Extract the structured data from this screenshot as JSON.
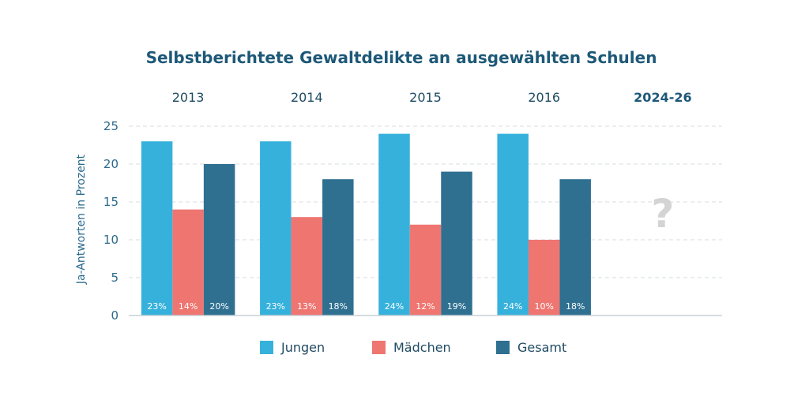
{
  "chart_data": {
    "type": "bar",
    "title": "Selbstberichtete Gewaltdelikte an ausgewählten Schulen",
    "ylabel": "Ja-Antworten in Prozent",
    "xlabel": "",
    "ylim": [
      0,
      25
    ],
    "yticks": [
      0,
      5,
      10,
      15,
      20,
      25
    ],
    "grid": true,
    "legend_position": "bottom",
    "categories": [
      "2013",
      "2014",
      "2015",
      "2016",
      "2024-26"
    ],
    "series": [
      {
        "name": "Jungen",
        "color": "#36b1dc",
        "values": [
          23,
          23,
          24,
          24,
          null
        ],
        "labels": [
          "23%",
          "23%",
          "24%",
          "24%",
          ""
        ]
      },
      {
        "name": "Mädchen",
        "color": "#ef7570",
        "values": [
          14,
          13,
          12,
          10,
          null
        ],
        "labels": [
          "14%",
          "13%",
          "12%",
          "10%",
          ""
        ]
      },
      {
        "name": "Gesamt",
        "color": "#2f7091",
        "values": [
          20,
          18,
          19,
          18,
          null
        ],
        "labels": [
          "20%",
          "18%",
          "19%",
          "18%",
          ""
        ]
      }
    ],
    "placeholder": {
      "category": "2024-26",
      "symbol": "?"
    }
  },
  "colors": {
    "title": "#1d5878",
    "axis_text": "#2b6a8c",
    "grid": "#d7dde2",
    "placeholder": "#d4d4d4",
    "bar_label": "#ffffff"
  }
}
